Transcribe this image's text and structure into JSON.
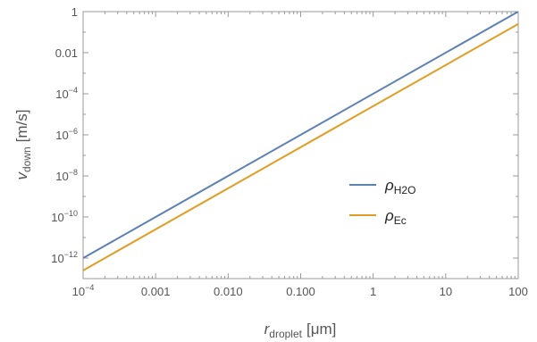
{
  "chart_data": {
    "type": "line",
    "x_scale": "log",
    "y_scale": "log",
    "xlim": [
      0.0001,
      100
    ],
    "ylim": [
      1e-13,
      1
    ],
    "xlabel": {
      "symbol": "r",
      "subscript": "droplet",
      "unit": "[μm]"
    },
    "ylabel": {
      "symbol": "v",
      "subscript": "down",
      "unit": "[m/s]"
    },
    "x_ticks": [
      {
        "value": 0.0001,
        "mantissa": "10",
        "exp": "−4"
      },
      {
        "value": 0.001,
        "mantissa": "0.001",
        "exp": ""
      },
      {
        "value": 0.01,
        "mantissa": "0.010",
        "exp": ""
      },
      {
        "value": 0.1,
        "mantissa": "0.100",
        "exp": ""
      },
      {
        "value": 1,
        "mantissa": "1",
        "exp": ""
      },
      {
        "value": 10,
        "mantissa": "10",
        "exp": ""
      },
      {
        "value": 100,
        "mantissa": "100",
        "exp": ""
      }
    ],
    "y_ticks": [
      {
        "value": 1,
        "mantissa": "1",
        "exp": ""
      },
      {
        "value": 0.01,
        "mantissa": "0.01",
        "exp": ""
      },
      {
        "value": 0.0001,
        "mantissa": "10",
        "exp": "−4"
      },
      {
        "value": 1e-06,
        "mantissa": "10",
        "exp": "−6"
      },
      {
        "value": 1e-08,
        "mantissa": "10",
        "exp": "−8"
      },
      {
        "value": 1e-10,
        "mantissa": "10",
        "exp": "−10"
      },
      {
        "value": 1e-12,
        "mantissa": "10",
        "exp": "−12"
      }
    ],
    "series": [
      {
        "symbol": "ρ",
        "subscript": "H2O",
        "color": "#5e81b5",
        "x": [
          0.0001,
          100
        ],
        "y": [
          1e-12,
          1
        ]
      },
      {
        "symbol": "ρ",
        "subscript": "Ec",
        "color": "#e19c24",
        "x": [
          0.0001,
          100
        ],
        "y": [
          2.5e-13,
          0.25
        ]
      }
    ],
    "legend_position": "center-right",
    "grid": false
  }
}
